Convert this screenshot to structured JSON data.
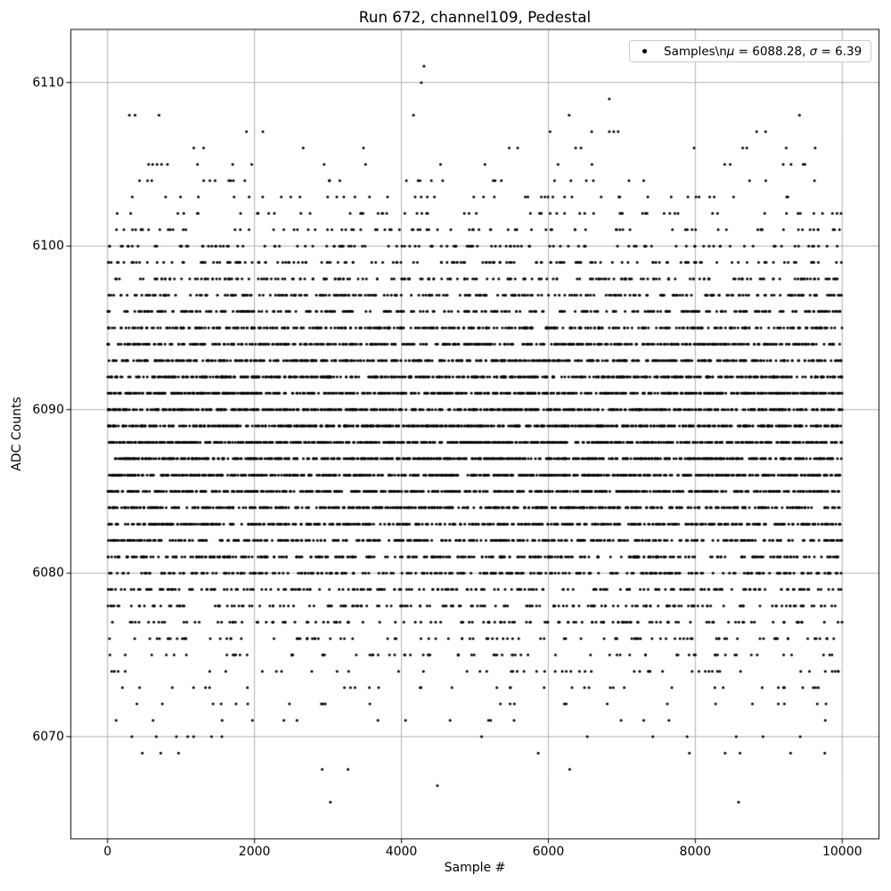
{
  "page": {
    "background": "#ffffff"
  },
  "chart_data": {
    "type": "scatter",
    "title": "Run 672, channel109, Pedestal",
    "xlabel": "Sample #",
    "ylabel": "ADC Counts",
    "xlim": [
      -500,
      10500
    ],
    "ylim": [
      6063.75,
      6113.25
    ],
    "xticks": [
      0,
      2000,
      4000,
      6000,
      8000,
      10000
    ],
    "yticks": [
      6070,
      6080,
      6090,
      6100,
      6110
    ],
    "grid": true,
    "grid_color": "#b0b0b0",
    "spine_color": "#000000",
    "marker": {
      "color": "#000000",
      "radius": 1.5
    },
    "n_points": 10000,
    "x_range": [
      0,
      10000
    ],
    "stats": {
      "mu": 6088.28,
      "sigma": 6.39
    },
    "legend": {
      "position": "upper right",
      "label_raw": "Samples\\nμ = 6088.28, σ = 6.39",
      "parts": [
        "Samples\\n",
        "μ",
        " = 6088.28, ",
        "σ",
        " = 6.39"
      ]
    },
    "generated_levels": [
      [
        6071,
        16
      ],
      [
        6072,
        24
      ],
      [
        6073,
        36
      ],
      [
        6074,
        51
      ],
      [
        6075,
        72
      ],
      [
        6076,
        98
      ],
      [
        6077,
        131
      ],
      [
        6078,
        171
      ],
      [
        6079,
        218
      ],
      [
        6080,
        270
      ],
      [
        6081,
        326
      ],
      [
        6082,
        385
      ],
      [
        6083,
        444
      ],
      [
        6084,
        499
      ],
      [
        6085,
        547
      ],
      [
        6086,
        586
      ],
      [
        6087,
        612
      ],
      [
        6088,
        624
      ],
      [
        6089,
        620
      ],
      [
        6090,
        602
      ],
      [
        6091,
        570
      ],
      [
        6092,
        527
      ],
      [
        6093,
        475
      ],
      [
        6094,
        418
      ],
      [
        6095,
        359
      ],
      [
        6096,
        301
      ],
      [
        6097,
        246
      ],
      [
        6098,
        196
      ],
      [
        6099,
        153
      ],
      [
        6100,
        116
      ],
      [
        6101,
        86
      ],
      [
        6102,
        62
      ],
      [
        6103,
        44
      ],
      [
        6104,
        30
      ],
      [
        6105,
        20
      ],
      [
        6106,
        13
      ]
    ],
    "pinned_points": [
      [
        6111,
        [
          4307
        ]
      ],
      [
        6110,
        [
          4271
        ]
      ],
      [
        6109,
        [
          6830
        ]
      ],
      [
        6108,
        [
          296,
          374,
          700,
          4164,
          6283,
          9418
        ]
      ],
      [
        6107,
        [
          1891,
          2114,
          6024,
          6590,
          6830,
          6890,
          6950,
          8835,
          8957
        ]
      ],
      [
        6070,
        [
          330,
          663,
          937,
          1091,
          1172,
          1415,
          1556,
          5091,
          6530,
          7422,
          7888,
          8557,
          8921,
          9428
        ]
      ],
      [
        6069,
        [
          473,
          724,
          966,
          5862,
          7920,
          8406,
          8609,
          9297,
          9762
        ]
      ],
      [
        6068,
        [
          2921,
          3273,
          6290
        ]
      ],
      [
        6067,
        [
          4489
        ]
      ],
      [
        6066,
        [
          3033,
          8589
        ]
      ]
    ]
  }
}
